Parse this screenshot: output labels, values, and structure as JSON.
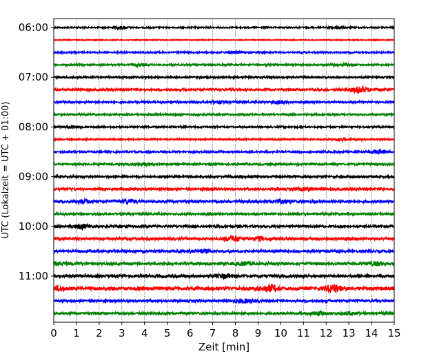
{
  "chart_data": {
    "type": "line",
    "xlabel": "Zeit  [min]",
    "ylabel": "UTC (Lokalzeit = UTC + 01:00)",
    "xlim": [
      0,
      15
    ],
    "x_ticks": [
      "0",
      "1",
      "2",
      "3",
      "4",
      "5",
      "6",
      "7",
      "8",
      "9",
      "10",
      "11",
      "12",
      "13",
      "14",
      "15"
    ],
    "y_ticks": [
      "06:00",
      "07:00",
      "08:00",
      "09:00",
      "10:00",
      "11:00"
    ],
    "minutes_per_trace": 15,
    "grid": "vertical dotted",
    "colors": [
      "#000000",
      "#ff0000",
      "#0000ff",
      "#008000"
    ],
    "traces": [
      {
        "time": "06:00",
        "color": "#000000",
        "noise": 0.9,
        "events": [
          [
            2.9,
            1.6
          ],
          [
            12.4,
            1.4
          ]
        ]
      },
      {
        "time": "06:15",
        "color": "#ff0000",
        "noise": 0.6,
        "events": []
      },
      {
        "time": "06:30",
        "color": "#0000ff",
        "noise": 1.0,
        "events": [
          [
            8.0,
            1.3
          ]
        ]
      },
      {
        "time": "06:45",
        "color": "#008000",
        "noise": 1.1,
        "events": [
          [
            3.8,
            1.5
          ],
          [
            12.6,
            1.4
          ]
        ]
      },
      {
        "time": "07:00",
        "color": "#000000",
        "noise": 1.2,
        "events": []
      },
      {
        "time": "07:15",
        "color": "#ff0000",
        "noise": 1.5,
        "events": [
          [
            13.5,
            4.0
          ]
        ]
      },
      {
        "time": "07:30",
        "color": "#0000ff",
        "noise": 1.3,
        "events": [
          [
            7.2,
            1.5
          ],
          [
            9.9,
            2.5
          ]
        ]
      },
      {
        "time": "07:45",
        "color": "#008000",
        "noise": 1.2,
        "events": []
      },
      {
        "time": "08:00",
        "color": "#000000",
        "noise": 1.1,
        "events": [
          [
            0.9,
            1.5
          ]
        ]
      },
      {
        "time": "08:15",
        "color": "#ff0000",
        "noise": 1.0,
        "events": [
          [
            12.7,
            1.6
          ]
        ]
      },
      {
        "time": "08:30",
        "color": "#0000ff",
        "noise": 1.2,
        "events": [
          [
            14.3,
            2.5
          ]
        ]
      },
      {
        "time": "08:45",
        "color": "#008000",
        "noise": 1.3,
        "events": [
          [
            4.0,
            1.6
          ]
        ]
      },
      {
        "time": "09:00",
        "color": "#000000",
        "noise": 1.5,
        "events": []
      },
      {
        "time": "09:15",
        "color": "#ff0000",
        "noise": 1.6,
        "events": [
          [
            11.1,
            1.8
          ]
        ]
      },
      {
        "time": "09:30",
        "color": "#0000ff",
        "noise": 1.8,
        "events": [
          [
            1.3,
            2.2
          ],
          [
            3.3,
            2.2
          ],
          [
            10.1,
            2.2
          ]
        ]
      },
      {
        "time": "09:45",
        "color": "#008000",
        "noise": 1.4,
        "events": []
      },
      {
        "time": "10:00",
        "color": "#000000",
        "noise": 1.5,
        "events": [
          [
            1.2,
            3.0
          ]
        ]
      },
      {
        "time": "10:15",
        "color": "#ff0000",
        "noise": 1.8,
        "events": [
          [
            7.9,
            3.2
          ],
          [
            9.1,
            2.0
          ]
        ]
      },
      {
        "time": "10:30",
        "color": "#0000ff",
        "noise": 1.7,
        "events": [
          [
            6.6,
            1.8
          ]
        ]
      },
      {
        "time": "10:45",
        "color": "#008000",
        "noise": 1.8,
        "events": [
          [
            0.3,
            1.8
          ],
          [
            8.4,
            2.0
          ],
          [
            14.2,
            2.0
          ]
        ]
      },
      {
        "time": "11:00",
        "color": "#000000",
        "noise": 2.0,
        "events": [
          [
            7.6,
            2.2
          ]
        ]
      },
      {
        "time": "11:15",
        "color": "#ff0000",
        "noise": 2.2,
        "events": [
          [
            0.2,
            2.5
          ],
          [
            9.5,
            4.5
          ],
          [
            12.3,
            4.5
          ]
        ]
      },
      {
        "time": "11:30",
        "color": "#0000ff",
        "noise": 1.7,
        "events": [
          [
            8.4,
            2.0
          ]
        ]
      },
      {
        "time": "11:45",
        "color": "#008000",
        "noise": 1.6,
        "events": [
          [
            11.6,
            2.0
          ],
          [
            13.1,
            1.8
          ]
        ]
      }
    ]
  }
}
